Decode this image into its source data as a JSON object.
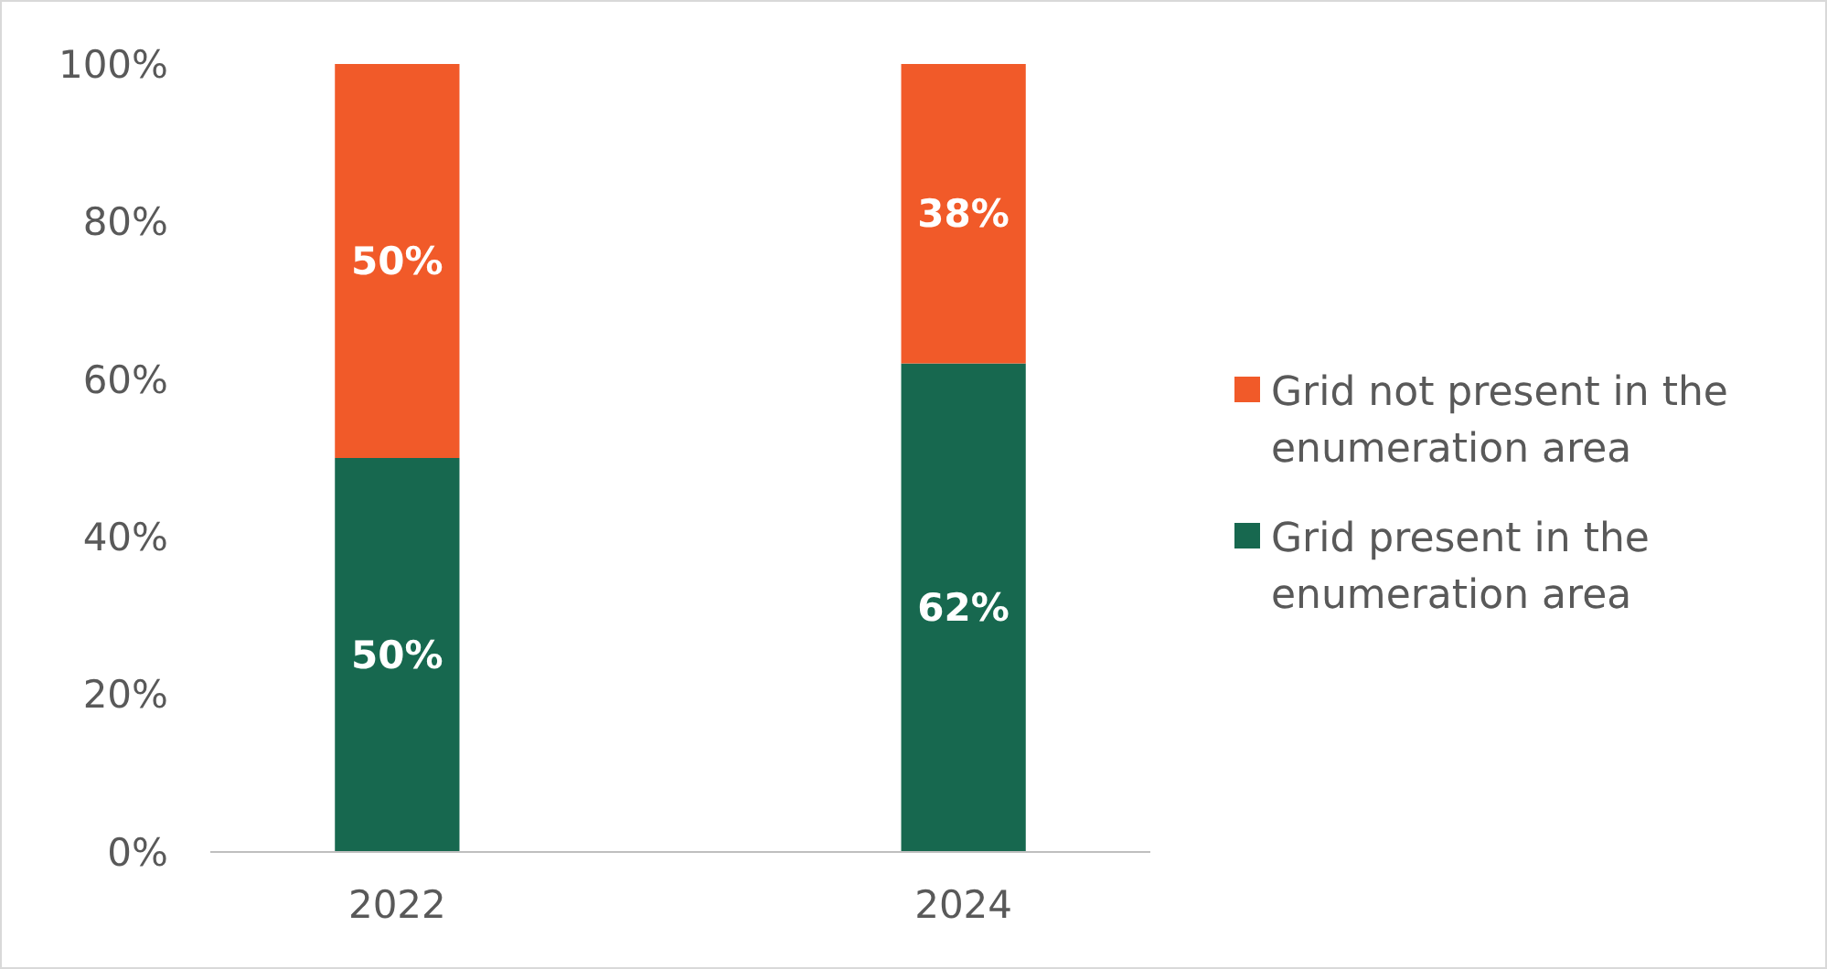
{
  "chart_data": {
    "type": "bar",
    "stacked": true,
    "categories": [
      "2022",
      "2024"
    ],
    "series": [
      {
        "name": "Grid present in the enumeration area",
        "color": "#17684f",
        "values": [
          50,
          62
        ],
        "value_labels": [
          "50%",
          "62%"
        ]
      },
      {
        "name": "Grid not present in the enumeration area",
        "color": "#f15a29",
        "values": [
          50,
          38
        ],
        "value_labels": [
          "50%",
          "38%"
        ]
      }
    ],
    "ylim": [
      0,
      100
    ],
    "yticks": [
      {
        "value": 0,
        "label": "0%"
      },
      {
        "value": 20,
        "label": "20%"
      },
      {
        "value": 40,
        "label": "40%"
      },
      {
        "value": 60,
        "label": "60%"
      },
      {
        "value": 80,
        "label": "80%"
      },
      {
        "value": 100,
        "label": "100%"
      }
    ],
    "grid": false,
    "legend": "right"
  }
}
